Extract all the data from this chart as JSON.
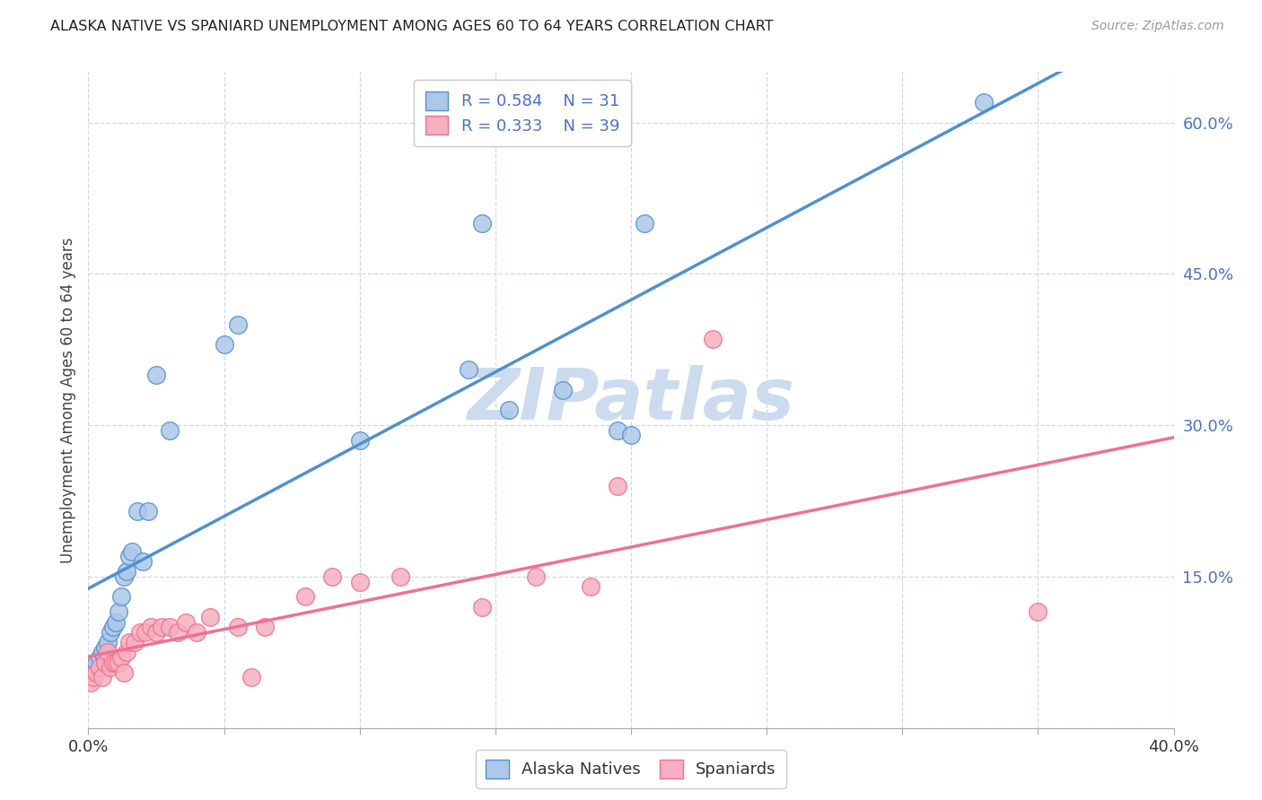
{
  "title": "ALASKA NATIVE VS SPANIARD UNEMPLOYMENT AMONG AGES 60 TO 64 YEARS CORRELATION CHART",
  "source": "Source: ZipAtlas.com",
  "ylabel": "Unemployment Among Ages 60 to 64 years",
  "xlim": [
    0.0,
    0.4
  ],
  "ylim": [
    0.0,
    0.65
  ],
  "alaska_R": 0.584,
  "alaska_N": 31,
  "spaniard_R": 0.333,
  "spaniard_N": 39,
  "alaska_color": "#adc8e8",
  "spaniard_color": "#f5afc0",
  "alaska_line_color": "#5090d0",
  "spaniard_line_color": "#f07090",
  "legend_text_color": "#4a70d0",
  "background_color": "#ffffff",
  "grid_color": "#ccd8ea",
  "watermark_color": "#ccdcee",
  "alaska_x": [
    0.002,
    0.003,
    0.004,
    0.005,
    0.006,
    0.007,
    0.008,
    0.009,
    0.01,
    0.011,
    0.012,
    0.013,
    0.014,
    0.015,
    0.016,
    0.018,
    0.02,
    0.022,
    0.025,
    0.03,
    0.05,
    0.055,
    0.1,
    0.14,
    0.145,
    0.155,
    0.175,
    0.195,
    0.2,
    0.205,
    0.33
  ],
  "alaska_y": [
    0.06,
    0.065,
    0.07,
    0.075,
    0.08,
    0.085,
    0.095,
    0.1,
    0.105,
    0.115,
    0.13,
    0.15,
    0.155,
    0.17,
    0.175,
    0.215,
    0.165,
    0.215,
    0.35,
    0.295,
    0.38,
    0.4,
    0.285,
    0.355,
    0.5,
    0.315,
    0.335,
    0.295,
    0.29,
    0.5,
    0.62
  ],
  "spaniard_x": [
    0.001,
    0.002,
    0.003,
    0.004,
    0.005,
    0.006,
    0.007,
    0.008,
    0.009,
    0.01,
    0.011,
    0.012,
    0.013,
    0.014,
    0.015,
    0.017,
    0.019,
    0.021,
    0.023,
    0.025,
    0.027,
    0.03,
    0.033,
    0.036,
    0.04,
    0.045,
    0.055,
    0.06,
    0.065,
    0.08,
    0.09,
    0.1,
    0.115,
    0.145,
    0.165,
    0.185,
    0.195,
    0.23,
    0.35
  ],
  "spaniard_y": [
    0.045,
    0.05,
    0.055,
    0.06,
    0.05,
    0.065,
    0.075,
    0.06,
    0.065,
    0.065,
    0.065,
    0.07,
    0.055,
    0.075,
    0.085,
    0.085,
    0.095,
    0.095,
    0.1,
    0.095,
    0.1,
    0.1,
    0.095,
    0.105,
    0.095,
    0.11,
    0.1,
    0.05,
    0.1,
    0.13,
    0.15,
    0.145,
    0.15,
    0.12,
    0.15,
    0.14,
    0.24,
    0.385,
    0.115
  ]
}
